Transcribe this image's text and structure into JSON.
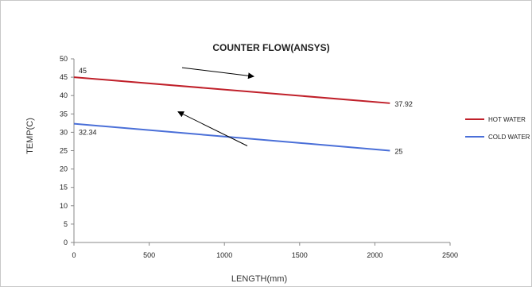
{
  "chart_data": {
    "type": "line",
    "title": "COUNTER FLOW(ANSYS)",
    "xlabel": "LENGTH(mm)",
    "ylabel": "TEMP(C)",
    "xlim": [
      0,
      2500
    ],
    "ylim": [
      0,
      50
    ],
    "x_ticks": [
      "0",
      "500",
      "1000",
      "1500",
      "2000",
      "2500"
    ],
    "y_ticks": [
      "0",
      "5",
      "10",
      "15",
      "20",
      "25",
      "30",
      "35",
      "40",
      "45",
      "50"
    ],
    "grid": false,
    "legend_position": "right",
    "series": [
      {
        "name": "HOT WATER",
        "color": "#c0202a",
        "x": [
          0,
          2100
        ],
        "y": [
          45,
          37.92
        ],
        "labels": [
          "45",
          "37.92"
        ]
      },
      {
        "name": "COLD WATER",
        "color": "#4a6fd8",
        "x": [
          0,
          2100
        ],
        "y": [
          32.34,
          25
        ],
        "labels": [
          "32.34",
          "25"
        ]
      }
    ],
    "annotations": [
      {
        "type": "arrow",
        "direction": "toward increasing length",
        "series": "HOT WATER"
      },
      {
        "type": "arrow",
        "direction": "toward decreasing length",
        "series": "COLD WATER"
      }
    ]
  }
}
